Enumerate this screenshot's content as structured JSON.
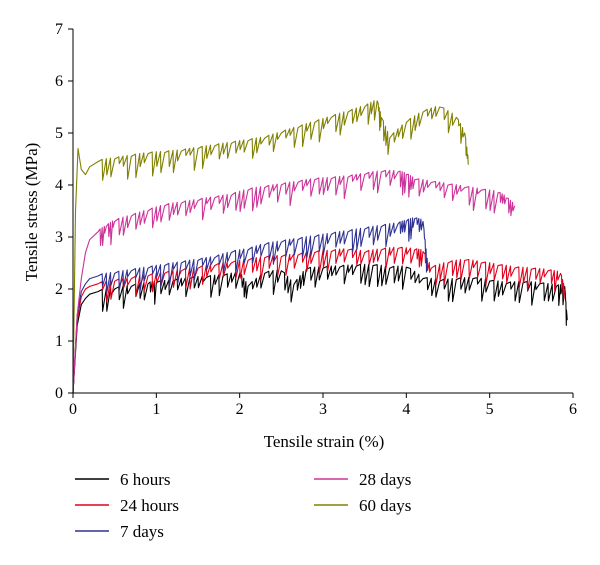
{
  "chart_data": {
    "type": "line",
    "title": "",
    "xlabel": "Tensile strain (%)",
    "ylabel": "Tensile stress (MPa)",
    "xlim": [
      0,
      6
    ],
    "ylim": [
      0,
      7
    ],
    "xticks": [
      "0",
      "1",
      "2",
      "3",
      "4",
      "5",
      "6"
    ],
    "yticks": [
      "0",
      "1",
      "2",
      "3",
      "4",
      "5",
      "6",
      "7"
    ],
    "grid": false,
    "legend_position": "bottom",
    "series": [
      {
        "name": "6 hours",
        "color": "#000000",
        "x": [
          0,
          0.05,
          0.1,
          0.15,
          0.2,
          0.3,
          0.5,
          0.7,
          0.9,
          1.0,
          1.2,
          1.4,
          1.6,
          1.8,
          2.0,
          2.1,
          2.3,
          2.5,
          2.65,
          2.8,
          3.0,
          3.2,
          3.4,
          3.6,
          3.8,
          4.0,
          4.2,
          4.4,
          4.6,
          4.8,
          5.0,
          5.2,
          5.4,
          5.6,
          5.8,
          5.9,
          5.93
        ],
        "y": [
          0,
          1.3,
          1.7,
          1.82,
          1.9,
          1.95,
          2.0,
          2.05,
          2.1,
          2.12,
          2.15,
          2.2,
          2.22,
          2.25,
          2.3,
          2.05,
          2.3,
          2.35,
          2.08,
          2.38,
          2.4,
          2.42,
          2.44,
          2.45,
          2.4,
          2.42,
          2.2,
          2.15,
          2.18,
          2.2,
          2.15,
          2.1,
          2.12,
          2.1,
          2.05,
          2.05,
          1.4
        ]
      },
      {
        "name": "24 hours",
        "color": "#e0001b",
        "x": [
          0,
          0.05,
          0.1,
          0.15,
          0.2,
          0.3,
          0.5,
          0.7,
          0.9,
          1.1,
          1.3,
          1.5,
          1.7,
          1.9,
          2.1,
          2.3,
          2.5,
          2.7,
          2.9,
          3.1,
          3.3,
          3.5,
          3.7,
          3.9,
          4.1,
          4.2,
          4.3,
          4.5,
          4.7,
          4.9,
          5.1,
          5.3,
          5.5,
          5.7,
          5.85,
          5.9
        ],
        "y": [
          0,
          1.4,
          1.85,
          2.0,
          2.05,
          2.1,
          2.15,
          2.2,
          2.25,
          2.3,
          2.35,
          2.4,
          2.45,
          2.5,
          2.55,
          2.6,
          2.62,
          2.65,
          2.7,
          2.72,
          2.75,
          2.7,
          2.75,
          2.78,
          2.75,
          2.72,
          2.4,
          2.5,
          2.55,
          2.5,
          2.45,
          2.4,
          2.38,
          2.35,
          2.3,
          2.0
        ]
      },
      {
        "name": "7 days",
        "color": "#2e3192",
        "x": [
          0,
          0.05,
          0.1,
          0.15,
          0.2,
          0.3,
          0.5,
          0.7,
          0.9,
          1.1,
          1.3,
          1.5,
          1.7,
          1.9,
          2.1,
          2.3,
          2.5,
          2.7,
          2.9,
          3.1,
          3.3,
          3.5,
          3.7,
          3.9,
          4.0,
          4.1,
          4.2,
          4.25
        ],
        "y": [
          0,
          1.5,
          1.95,
          2.1,
          2.2,
          2.25,
          2.3,
          2.35,
          2.4,
          2.45,
          2.5,
          2.55,
          2.6,
          2.7,
          2.75,
          2.85,
          2.9,
          2.95,
          3.0,
          3.05,
          3.1,
          3.15,
          3.2,
          3.25,
          3.3,
          3.35,
          3.3,
          2.55
        ]
      },
      {
        "name": "28 days",
        "color": "#cc3399",
        "x": [
          0,
          0.05,
          0.1,
          0.15,
          0.2,
          0.3,
          0.4,
          0.5,
          0.7,
          0.9,
          1.1,
          1.3,
          1.5,
          1.7,
          1.9,
          2.1,
          2.3,
          2.5,
          2.7,
          2.9,
          3.1,
          3.3,
          3.5,
          3.7,
          3.9,
          4.0,
          4.1,
          4.3,
          4.5,
          4.7,
          4.9,
          5.1,
          5.2,
          5.3
        ],
        "y": [
          0,
          1.5,
          2.2,
          2.7,
          2.95,
          3.1,
          3.2,
          3.3,
          3.4,
          3.5,
          3.6,
          3.65,
          3.7,
          3.75,
          3.8,
          3.9,
          3.95,
          4.0,
          4.05,
          4.1,
          4.12,
          4.15,
          4.2,
          4.25,
          4.25,
          4.2,
          4.1,
          4.05,
          4.0,
          3.95,
          3.9,
          3.85,
          3.75,
          3.6
        ]
      },
      {
        "name": "60 days",
        "color": "#808000",
        "x": [
          0,
          0.03,
          0.06,
          0.1,
          0.15,
          0.2,
          0.3,
          0.5,
          0.7,
          0.9,
          1.1,
          1.3,
          1.5,
          1.7,
          1.9,
          2.1,
          2.3,
          2.5,
          2.7,
          2.9,
          3.1,
          3.3,
          3.5,
          3.65,
          3.7,
          3.8,
          4.0,
          4.2,
          4.4,
          4.6,
          4.7,
          4.75
        ],
        "y": [
          0,
          3.5,
          4.7,
          4.3,
          4.2,
          4.35,
          4.45,
          4.5,
          4.55,
          4.6,
          4.62,
          4.65,
          4.7,
          4.75,
          4.8,
          4.85,
          4.9,
          5.0,
          5.1,
          5.2,
          5.3,
          5.4,
          5.5,
          5.62,
          5.3,
          4.9,
          5.2,
          5.4,
          5.5,
          5.3,
          5.0,
          4.4
        ]
      }
    ]
  }
}
